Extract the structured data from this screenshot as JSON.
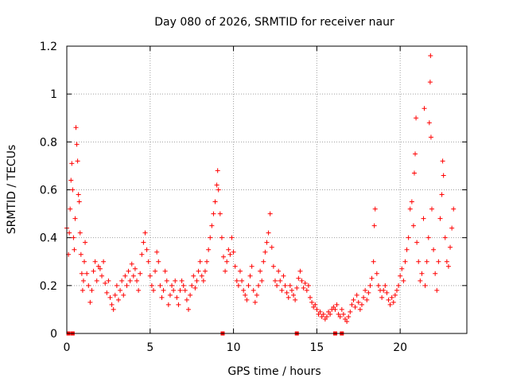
{
  "chart_data": {
    "type": "scatter",
    "title": "Day 080 of 2026, SRMTID for receiver naur",
    "xlabel": "GPS time / hours",
    "ylabel": "SRMTID / TECUs",
    "xlim": [
      0,
      24
    ],
    "ylim": [
      0,
      1.2
    ],
    "grid": true,
    "marker": "+",
    "color": "#ff0000",
    "xticks": [
      0,
      5,
      10,
      15,
      20
    ],
    "xtick_labels": [
      "0",
      "5",
      "10",
      "15",
      "20"
    ],
    "yticks": [
      0,
      0.2,
      0.4,
      0.6,
      0.8,
      1,
      1.2
    ],
    "ytick_labels": [
      "0",
      "0.2",
      "0.4",
      "0.6",
      "0.8",
      "1",
      "1.2"
    ],
    "zero_markers_x": [
      0.1,
      0.35,
      9.35,
      13.8,
      16.1,
      16.5
    ],
    "series": [
      {
        "name": "SRMTID",
        "points": [
          [
            0.0,
            0.44
          ],
          [
            0.1,
            0.33
          ],
          [
            0.15,
            0.42
          ],
          [
            0.2,
            0.52
          ],
          [
            0.25,
            0.64
          ],
          [
            0.3,
            0.71
          ],
          [
            0.35,
            0.6
          ],
          [
            0.4,
            0.4
          ],
          [
            0.45,
            0.35
          ],
          [
            0.5,
            0.48
          ],
          [
            0.55,
            0.86
          ],
          [
            0.6,
            0.79
          ],
          [
            0.65,
            0.72
          ],
          [
            0.7,
            0.58
          ],
          [
            0.75,
            0.55
          ],
          [
            0.8,
            0.42
          ],
          [
            0.85,
            0.33
          ],
          [
            0.9,
            0.25
          ],
          [
            0.95,
            0.18
          ],
          [
            1.0,
            0.22
          ],
          [
            1.05,
            0.3
          ],
          [
            1.1,
            0.38
          ],
          [
            1.2,
            0.25
          ],
          [
            1.3,
            0.2
          ],
          [
            1.4,
            0.13
          ],
          [
            1.5,
            0.18
          ],
          [
            1.6,
            0.26
          ],
          [
            1.7,
            0.3
          ],
          [
            1.8,
            0.22
          ],
          [
            1.9,
            0.28
          ],
          [
            2.0,
            0.27
          ],
          [
            2.1,
            0.24
          ],
          [
            2.2,
            0.3
          ],
          [
            2.3,
            0.21
          ],
          [
            2.4,
            0.17
          ],
          [
            2.5,
            0.22
          ],
          [
            2.6,
            0.15
          ],
          [
            2.7,
            0.12
          ],
          [
            2.8,
            0.1
          ],
          [
            2.9,
            0.16
          ],
          [
            3.0,
            0.2
          ],
          [
            3.1,
            0.14
          ],
          [
            3.2,
            0.18
          ],
          [
            3.3,
            0.22
          ],
          [
            3.4,
            0.16
          ],
          [
            3.5,
            0.24
          ],
          [
            3.6,
            0.2
          ],
          [
            3.7,
            0.26
          ],
          [
            3.8,
            0.22
          ],
          [
            3.9,
            0.29
          ],
          [
            4.0,
            0.24
          ],
          [
            4.1,
            0.27
          ],
          [
            4.2,
            0.22
          ],
          [
            4.3,
            0.18
          ],
          [
            4.4,
            0.25
          ],
          [
            4.5,
            0.33
          ],
          [
            4.6,
            0.38
          ],
          [
            4.7,
            0.42
          ],
          [
            4.8,
            0.35
          ],
          [
            4.9,
            0.3
          ],
          [
            5.0,
            0.24
          ],
          [
            5.1,
            0.2
          ],
          [
            5.2,
            0.18
          ],
          [
            5.3,
            0.26
          ],
          [
            5.4,
            0.34
          ],
          [
            5.5,
            0.3
          ],
          [
            5.6,
            0.2
          ],
          [
            5.7,
            0.15
          ],
          [
            5.8,
            0.18
          ],
          [
            5.9,
            0.26
          ],
          [
            6.0,
            0.22
          ],
          [
            6.1,
            0.12
          ],
          [
            6.2,
            0.16
          ],
          [
            6.3,
            0.2
          ],
          [
            6.4,
            0.18
          ],
          [
            6.5,
            0.22
          ],
          [
            6.6,
            0.15
          ],
          [
            6.7,
            0.12
          ],
          [
            6.8,
            0.18
          ],
          [
            6.9,
            0.22
          ],
          [
            7.0,
            0.2
          ],
          [
            7.1,
            0.18
          ],
          [
            7.2,
            0.14
          ],
          [
            7.3,
            0.1
          ],
          [
            7.4,
            0.16
          ],
          [
            7.5,
            0.2
          ],
          [
            7.6,
            0.24
          ],
          [
            7.7,
            0.19
          ],
          [
            7.8,
            0.22
          ],
          [
            7.9,
            0.26
          ],
          [
            8.0,
            0.3
          ],
          [
            8.1,
            0.24
          ],
          [
            8.2,
            0.22
          ],
          [
            8.3,
            0.26
          ],
          [
            8.4,
            0.3
          ],
          [
            8.5,
            0.35
          ],
          [
            8.6,
            0.4
          ],
          [
            8.7,
            0.45
          ],
          [
            8.8,
            0.5
          ],
          [
            8.9,
            0.55
          ],
          [
            9.0,
            0.62
          ],
          [
            9.05,
            0.68
          ],
          [
            9.1,
            0.6
          ],
          [
            9.2,
            0.5
          ],
          [
            9.3,
            0.4
          ],
          [
            9.4,
            0.32
          ],
          [
            9.5,
            0.26
          ],
          [
            9.6,
            0.3
          ],
          [
            9.7,
            0.35
          ],
          [
            9.8,
            0.33
          ],
          [
            9.9,
            0.4
          ],
          [
            10.0,
            0.34
          ],
          [
            10.1,
            0.28
          ],
          [
            10.2,
            0.22
          ],
          [
            10.3,
            0.2
          ],
          [
            10.4,
            0.26
          ],
          [
            10.5,
            0.22
          ],
          [
            10.6,
            0.18
          ],
          [
            10.7,
            0.16
          ],
          [
            10.8,
            0.14
          ],
          [
            10.9,
            0.2
          ],
          [
            11.0,
            0.24
          ],
          [
            11.1,
            0.28
          ],
          [
            11.2,
            0.18
          ],
          [
            11.3,
            0.13
          ],
          [
            11.4,
            0.16
          ],
          [
            11.5,
            0.2
          ],
          [
            11.6,
            0.26
          ],
          [
            11.7,
            0.22
          ],
          [
            11.8,
            0.3
          ],
          [
            11.9,
            0.34
          ],
          [
            12.0,
            0.38
          ],
          [
            12.1,
            0.42
          ],
          [
            12.2,
            0.5
          ],
          [
            12.3,
            0.36
          ],
          [
            12.4,
            0.28
          ],
          [
            12.5,
            0.22
          ],
          [
            12.6,
            0.2
          ],
          [
            12.7,
            0.26
          ],
          [
            12.8,
            0.22
          ],
          [
            12.9,
            0.18
          ],
          [
            13.0,
            0.24
          ],
          [
            13.1,
            0.2
          ],
          [
            13.2,
            0.17
          ],
          [
            13.3,
            0.15
          ],
          [
            13.4,
            0.2
          ],
          [
            13.5,
            0.18
          ],
          [
            13.6,
            0.16
          ],
          [
            13.7,
            0.14
          ],
          [
            13.8,
            0.19
          ],
          [
            13.9,
            0.23
          ],
          [
            14.0,
            0.26
          ],
          [
            14.1,
            0.22
          ],
          [
            14.2,
            0.19
          ],
          [
            14.3,
            0.21
          ],
          [
            14.4,
            0.18
          ],
          [
            14.5,
            0.2
          ],
          [
            14.6,
            0.15
          ],
          [
            14.7,
            0.13
          ],
          [
            14.8,
            0.11
          ],
          [
            14.9,
            0.12
          ],
          [
            15.0,
            0.1
          ],
          [
            15.1,
            0.08
          ],
          [
            15.2,
            0.09
          ],
          [
            15.3,
            0.07
          ],
          [
            15.4,
            0.08
          ],
          [
            15.5,
            0.06
          ],
          [
            15.6,
            0.07
          ],
          [
            15.7,
            0.09
          ],
          [
            15.8,
            0.08
          ],
          [
            15.9,
            0.1
          ],
          [
            16.0,
            0.11
          ],
          [
            16.1,
            0.1
          ],
          [
            16.2,
            0.12
          ],
          [
            16.3,
            0.08
          ],
          [
            16.4,
            0.07
          ],
          [
            16.5,
            0.1
          ],
          [
            16.6,
            0.08
          ],
          [
            16.7,
            0.06
          ],
          [
            16.8,
            0.05
          ],
          [
            16.9,
            0.07
          ],
          [
            17.0,
            0.09
          ],
          [
            17.1,
            0.12
          ],
          [
            17.2,
            0.14
          ],
          [
            17.3,
            0.11
          ],
          [
            17.4,
            0.16
          ],
          [
            17.5,
            0.13
          ],
          [
            17.6,
            0.1
          ],
          [
            17.7,
            0.12
          ],
          [
            17.8,
            0.15
          ],
          [
            17.9,
            0.18
          ],
          [
            18.0,
            0.14
          ],
          [
            18.1,
            0.17
          ],
          [
            18.2,
            0.2
          ],
          [
            18.3,
            0.23
          ],
          [
            18.4,
            0.3
          ],
          [
            18.45,
            0.45
          ],
          [
            18.5,
            0.52
          ],
          [
            18.6,
            0.25
          ],
          [
            18.7,
            0.2
          ],
          [
            18.8,
            0.18
          ],
          [
            18.9,
            0.15
          ],
          [
            19.0,
            0.18
          ],
          [
            19.1,
            0.2
          ],
          [
            19.2,
            0.17
          ],
          [
            19.3,
            0.14
          ],
          [
            19.4,
            0.12
          ],
          [
            19.5,
            0.15
          ],
          [
            19.6,
            0.13
          ],
          [
            19.7,
            0.16
          ],
          [
            19.8,
            0.18
          ],
          [
            19.9,
            0.2
          ],
          [
            20.0,
            0.24
          ],
          [
            20.1,
            0.27
          ],
          [
            20.2,
            0.22
          ],
          [
            20.3,
            0.3
          ],
          [
            20.4,
            0.35
          ],
          [
            20.5,
            0.4
          ],
          [
            20.6,
            0.52
          ],
          [
            20.7,
            0.55
          ],
          [
            20.8,
            0.45
          ],
          [
            20.85,
            0.67
          ],
          [
            20.9,
            0.75
          ],
          [
            20.95,
            0.9
          ],
          [
            21.0,
            0.38
          ],
          [
            21.1,
            0.3
          ],
          [
            21.2,
            0.22
          ],
          [
            21.3,
            0.25
          ],
          [
            21.4,
            0.48
          ],
          [
            21.45,
            0.94
          ],
          [
            21.5,
            0.2
          ],
          [
            21.6,
            0.3
          ],
          [
            21.7,
            0.4
          ],
          [
            21.75,
            0.88
          ],
          [
            21.8,
            1.05
          ],
          [
            21.82,
            1.16
          ],
          [
            21.85,
            0.82
          ],
          [
            21.9,
            0.52
          ],
          [
            22.0,
            0.35
          ],
          [
            22.1,
            0.25
          ],
          [
            22.2,
            0.18
          ],
          [
            22.3,
            0.3
          ],
          [
            22.4,
            0.48
          ],
          [
            22.5,
            0.58
          ],
          [
            22.55,
            0.72
          ],
          [
            22.6,
            0.66
          ],
          [
            22.7,
            0.4
          ],
          [
            22.8,
            0.3
          ],
          [
            22.9,
            0.28
          ],
          [
            23.0,
            0.36
          ],
          [
            23.1,
            0.44
          ],
          [
            23.2,
            0.52
          ]
        ]
      }
    ]
  }
}
